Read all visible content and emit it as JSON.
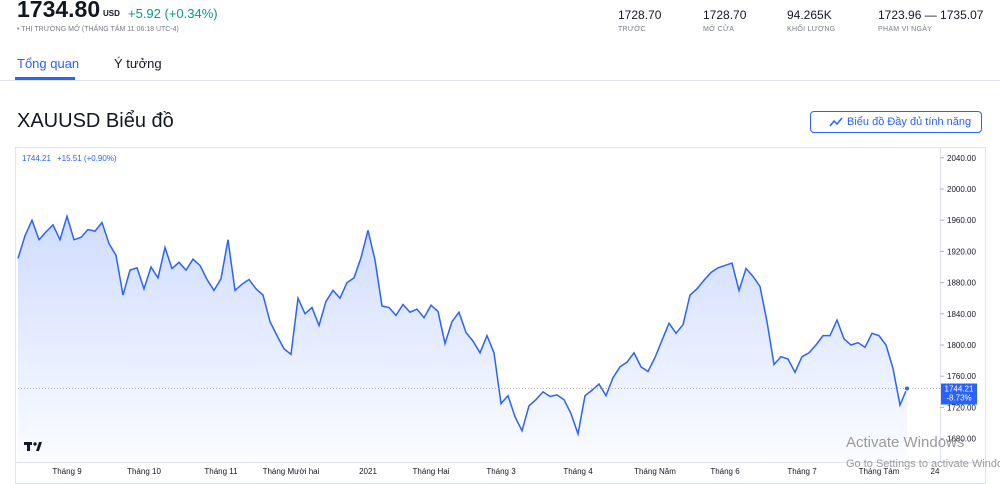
{
  "header": {
    "price": "1734.80",
    "currency": "USD",
    "change": "+5.92 (+0.34%)",
    "status": "• THỊ TRƯỜNG MỞ (THÁNG TÁM 11 06:18 UTC-4)"
  },
  "stats": [
    {
      "value": "1728.70",
      "label": "TRƯỚC"
    },
    {
      "value": "1728.70",
      "label": "MỞ CỬA"
    },
    {
      "value": "94.265K",
      "label": "KHỐI LƯỢNG"
    },
    {
      "value": "1723.96 — 1735.07",
      "label": "PHẠM VI NGÀY"
    }
  ],
  "tabs": [
    "Tổng quan",
    "Ý tưởng"
  ],
  "section_title": "XAUUSD Biểu đồ",
  "button_label": "Biểu đồ Đầy đủ tính năng",
  "watermark": {
    "title": "Activate Windows",
    "subtitle": "Go to Settings to activate Windows."
  },
  "chart_data": {
    "type": "line",
    "legend_change": "+15.51 (+0.90%)",
    "price_tag_change": "-8.73%",
    "grid": false,
    "categories": [
      null,
      null,
      null,
      null,
      null,
      null,
      null,
      "Tháng 9",
      null,
      null,
      null,
      null,
      null,
      null,
      null,
      null,
      null,
      null,
      "Tháng 10",
      null,
      null,
      null,
      null,
      null,
      null,
      null,
      null,
      null,
      null,
      "Tháng 11",
      null,
      null,
      null,
      null,
      null,
      null,
      null,
      null,
      null,
      "Tháng Mười hai",
      null,
      null,
      null,
      null,
      null,
      null,
      null,
      null,
      null,
      null,
      "2021",
      null,
      null,
      null,
      null,
      null,
      null,
      null,
      null,
      "Tháng Hai",
      null,
      null,
      null,
      null,
      null,
      null,
      null,
      null,
      null,
      "Tháng 3",
      null,
      null,
      null,
      null,
      null,
      null,
      null,
      null,
      null,
      null,
      "Tháng 4",
      null,
      null,
      null,
      null,
      null,
      null,
      null,
      null,
      null,
      null,
      "Tháng Năm",
      null,
      null,
      null,
      null,
      null,
      null,
      null,
      null,
      null,
      "Tháng 6",
      null,
      null,
      null,
      null,
      null,
      null,
      null,
      null,
      null,
      null,
      "Tháng 7",
      null,
      null,
      null,
      null,
      null,
      null,
      null,
      null,
      null,
      null,
      "Tháng Tám",
      null,
      null,
      null,
      null,
      null,
      null,
      null,
      "24",
      null
    ],
    "series": [
      {
        "name": "XAUUSD",
        "color": "#2962ff",
        "values": [
          1911,
          1940,
          1960,
          1935,
          1945,
          1954,
          1935,
          1965,
          1935,
          1938,
          1948,
          1946,
          1957,
          1930,
          1915,
          1864,
          1896,
          1899,
          1872,
          1900,
          1886,
          1925,
          1898,
          1906,
          1896,
          1910,
          1902,
          1884,
          1870,
          1885,
          1935,
          1870,
          1878,
          1884,
          1872,
          1864,
          1830,
          1812,
          1795,
          1788,
          1860,
          1840,
          1848,
          1825,
          1856,
          1870,
          1860,
          1880,
          1886,
          1912,
          1947,
          1909,
          1850,
          1848,
          1838,
          1852,
          1842,
          1846,
          1835,
          1851,
          1843,
          1802,
          1830,
          1842,
          1816,
          1805,
          1790,
          1812,
          1790,
          1725,
          1735,
          1708,
          1690,
          1722,
          1730,
          1740,
          1734,
          1736,
          1730,
          1712,
          1686,
          1735,
          1742,
          1750,
          1735,
          1758,
          1772,
          1778,
          1790,
          1772,
          1766,
          1784,
          1806,
          1828,
          1815,
          1826,
          1864,
          1872,
          1883,
          1893,
          1899,
          1902,
          1905,
          1870,
          1898,
          1888,
          1875,
          1830,
          1775,
          1785,
          1782,
          1765,
          1785,
          1790,
          1800,
          1812,
          1812,
          1832,
          1808,
          1800,
          1803,
          1797,
          1815,
          1812,
          1800,
          1770,
          1723,
          1744.21,
          null,
          null,
          null,
          null,
          null
        ]
      }
    ],
    "ylim": [
      1650,
      2050
    ],
    "yticks": [
      {
        "value": 1680,
        "label": "1680.00"
      },
      {
        "value": 1720,
        "label": "1720.00"
      },
      {
        "value": 1760,
        "label": "1760.00"
      },
      {
        "value": 1800,
        "label": "1800.00"
      },
      {
        "value": 1840,
        "label": "1840.00"
      },
      {
        "value": 1880,
        "label": "1880.00"
      },
      {
        "value": 1920,
        "label": "1920.00"
      },
      {
        "value": 1960,
        "label": "1960.00"
      },
      {
        "value": 2000,
        "label": "2000.00"
      },
      {
        "value": 2040,
        "label": "2040.00"
      }
    ]
  }
}
